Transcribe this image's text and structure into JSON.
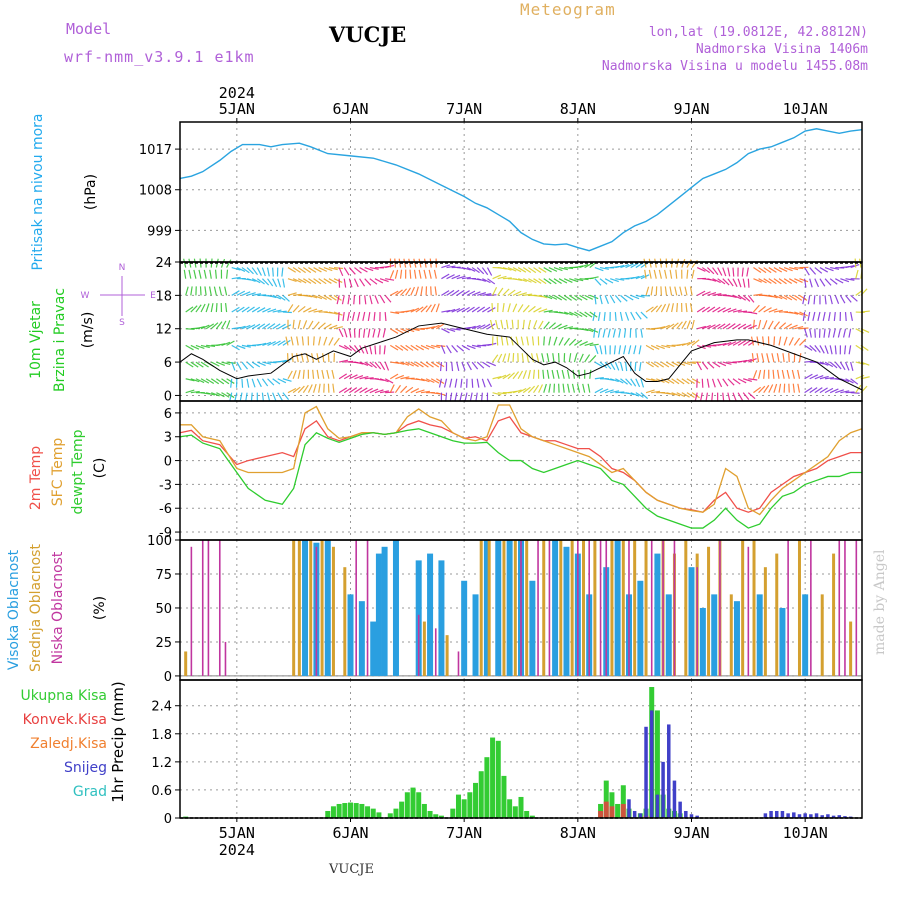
{
  "header": {
    "model_label": "Model",
    "model_name": "wrf-nmm_v3.9.1  e1km",
    "station": "VUCJE",
    "product": "Meteogram",
    "coords": "lon,lat (19.0812E, 42.8812N)",
    "elevation": "Nadmorska Visina 1406m",
    "model_elevation": "Nadmorska Visina u modelu 1455.08m",
    "footer_station": "VUCJE",
    "credit": "made by Angel"
  },
  "colors": {
    "pressure": "#2aa4e0",
    "temp2m": "#f0504a",
    "sfc": "#e0a030",
    "dewpt": "#2ecc2e",
    "high": "#2a9fe0",
    "mid": "#d4a030",
    "low": "#c0369f",
    "rain": "#33cc33",
    "conv": "#e84040",
    "frozen": "#f08030",
    "snow": "#4040c8",
    "graupel": "#30c0c0",
    "label_cyan": "#22aaee",
    "label_green": "#22cc22",
    "label_violet": "#b060d8"
  },
  "chart_data": [
    {
      "type": "line",
      "name": "pressure",
      "ylabel": [
        "Pritisak na nivou mora",
        "(hPa)"
      ],
      "yticks": [
        999,
        1008,
        1017
      ],
      "ylim": [
        992,
        1023
      ],
      "x": [
        0,
        0.1,
        0.2,
        0.35,
        0.45,
        0.55,
        0.7,
        0.8,
        0.9,
        1.05,
        1.15,
        1.3,
        1.5,
        1.7,
        1.9,
        2.1,
        2.3,
        2.5,
        2.6,
        2.7,
        2.8,
        2.9,
        3.0,
        3.1,
        3.2,
        3.3,
        3.4,
        3.5,
        3.6,
        3.7,
        3.8,
        3.9,
        4.0,
        4.1,
        4.2,
        4.3,
        4.4,
        4.5,
        4.6,
        4.7,
        4.8,
        4.9,
        5.0,
        5.1,
        5.2,
        5.3,
        5.4,
        5.5,
        5.6,
        5.7,
        5.8,
        5.9,
        6.0
      ],
      "series": [
        {
          "values": [
            1010.5,
            1011,
            1012,
            1014.5,
            1016.5,
            1018,
            1018,
            1017.5,
            1018,
            1018.3,
            1017.5,
            1016,
            1015.5,
            1015,
            1013.5,
            1011.5,
            1009,
            1006.5,
            1005,
            1004,
            1002.5,
            1001,
            998.5,
            997,
            996,
            995.8,
            996,
            995.2,
            994.5,
            995.5,
            996.5,
            998.5,
            1000,
            1001,
            1002.5,
            1004.5,
            1006.5,
            1008.5,
            1010.5,
            1011.5,
            1012.5,
            1014,
            1016,
            1017,
            1017.5,
            1018.5,
            1019.5,
            1021,
            1021.5,
            1021,
            1020.5,
            1021,
            1021.3
          ]
        }
      ]
    },
    {
      "type": "line",
      "name": "wind",
      "ylabel": [
        "10m Vjetar",
        "Brzina i Pravac",
        "(m/s)"
      ],
      "yticks": [
        0,
        6,
        12,
        18,
        24
      ],
      "ylim": [
        -1,
        24
      ],
      "legend": {
        "top": "N",
        "left": "W",
        "right": "E",
        "bottom": "S"
      },
      "x": [
        0,
        0.1,
        0.2,
        0.35,
        0.5,
        0.6,
        0.8,
        1.0,
        1.1,
        1.2,
        1.35,
        1.5,
        1.6,
        1.75,
        1.9,
        2.1,
        2.3,
        2.5,
        2.7,
        2.9,
        3.0,
        3.1,
        3.2,
        3.3,
        3.4,
        3.5,
        3.6,
        3.7,
        3.8,
        3.9,
        4.0,
        4.1,
        4.2,
        4.3,
        4.4,
        4.5,
        4.7,
        4.9,
        5.0,
        5.2,
        5.4,
        5.6,
        5.8,
        6.0
      ],
      "series": [
        {
          "values": [
            6,
            7.5,
            6.5,
            4.5,
            3,
            3.5,
            4,
            7,
            7.5,
            6.5,
            8,
            7,
            8.5,
            9.5,
            10.5,
            12.5,
            13,
            12,
            11,
            10.5,
            8.5,
            6.5,
            5.5,
            6,
            5,
            3.5,
            4,
            5,
            6,
            7,
            4,
            2.5,
            2.5,
            3,
            5.5,
            8,
            9.5,
            10,
            10,
            9,
            7.5,
            6,
            3,
            1
          ]
        }
      ]
    },
    {
      "type": "line",
      "name": "temperature",
      "ylabel": [
        "2m Temp",
        "SFC Temp",
        "dewpt Temp",
        "(C)"
      ],
      "yticks": [
        -9,
        -6,
        -3,
        0,
        3,
        6
      ],
      "ylim": [
        -10,
        7.5
      ],
      "x": [
        0,
        0.1,
        0.2,
        0.35,
        0.5,
        0.6,
        0.75,
        0.9,
        1.0,
        1.1,
        1.2,
        1.3,
        1.4,
        1.5,
        1.6,
        1.7,
        1.8,
        1.9,
        2.0,
        2.1,
        2.2,
        2.3,
        2.4,
        2.5,
        2.6,
        2.7,
        2.8,
        2.9,
        3.0,
        3.1,
        3.2,
        3.3,
        3.4,
        3.5,
        3.6,
        3.7,
        3.8,
        3.9,
        4.0,
        4.1,
        4.2,
        4.3,
        4.4,
        4.5,
        4.6,
        4.7,
        4.8,
        4.9,
        5.0,
        5.1,
        5.2,
        5.3,
        5.4,
        5.5,
        5.6,
        5.7,
        5.8,
        5.9,
        6.0
      ],
      "series": [
        {
          "name": "2m Temp",
          "values": [
            3.5,
            3.8,
            2.5,
            2,
            -0.5,
            0,
            0.5,
            1,
            0.5,
            4,
            5,
            3,
            2.5,
            3,
            3.5,
            3.5,
            3.3,
            3.5,
            4.5,
            5,
            4.5,
            4.2,
            3.5,
            2.8,
            3,
            2.5,
            5,
            5.5,
            3.5,
            3,
            2.5,
            2.5,
            2,
            1.5,
            1.5,
            0.5,
            -1,
            -1.5,
            -2.5,
            -4,
            -5,
            -5.5,
            -6,
            -6.2,
            -6.5,
            -5,
            -4,
            -6,
            -6.5,
            -6,
            -4,
            -3,
            -2,
            -1.5,
            -1,
            0,
            0.5,
            1,
            1
          ]
        },
        {
          "name": "SFC Temp",
          "values": [
            4.5,
            4.5,
            3,
            2.5,
            -1,
            -1.5,
            -1.5,
            -1.5,
            -1,
            6,
            6.8,
            4,
            2.8,
            3,
            3.5,
            3.5,
            3.3,
            3.5,
            5.5,
            6.5,
            5.5,
            5,
            3.5,
            2.8,
            2.5,
            3,
            7,
            7,
            4,
            3,
            2.5,
            2,
            1.5,
            1,
            0.5,
            -0.5,
            -1.5,
            -1,
            -2.5,
            -4,
            -5,
            -5.5,
            -6,
            -6.3,
            -6.5,
            -5.5,
            -1,
            -2,
            -6,
            -6.8,
            -5,
            -3.5,
            -2.5,
            -1.5,
            -0.5,
            0.5,
            2.5,
            3.5,
            4
          ]
        },
        {
          "name": "dewpt Temp",
          "values": [
            3,
            3.2,
            2.2,
            1.5,
            -1.5,
            -3.5,
            -5,
            -5.5,
            -3.5,
            2,
            3.5,
            2.8,
            2.3,
            2.8,
            3.3,
            3.5,
            3.3,
            3.5,
            3.8,
            4,
            3.5,
            3,
            2.5,
            2.2,
            2.2,
            2.3,
            1,
            0,
            0,
            -1,
            -1.5,
            -1,
            -0.5,
            0,
            -0.5,
            -1,
            -2.5,
            -3,
            -4.5,
            -6,
            -7,
            -7.5,
            -8,
            -8.5,
            -8.5,
            -7.5,
            -6,
            -7.5,
            -8.5,
            -8,
            -6,
            -4.5,
            -4,
            -3,
            -2.5,
            -2,
            -2,
            -1.5,
            -1.5
          ]
        }
      ]
    },
    {
      "type": "bar",
      "name": "clouds",
      "ylabel": [
        "Visoka Oblacnost",
        "Srednja Oblacnost",
        "Niska Oblacnost",
        "(%)"
      ],
      "yticks": [
        0,
        25,
        50,
        75,
        100
      ],
      "ylim": [
        -3,
        100
      ],
      "series": [
        {
          "name": "Visoka Oblacnost",
          "x": [
            1.1,
            1.2,
            1.3,
            1.5,
            1.6,
            1.7,
            1.75,
            1.8,
            1.9,
            2.1,
            2.2,
            2.3,
            2.5,
            2.6,
            2.7,
            2.8,
            2.9,
            3.0,
            3.1,
            3.3,
            3.4,
            3.5,
            3.6,
            3.75,
            3.85,
            3.95,
            4.05,
            4.2,
            4.3,
            4.5,
            4.6,
            4.7,
            4.9,
            5.1,
            5.3,
            5.5
          ],
          "values": [
            100,
            98,
            100,
            60,
            55,
            40,
            90,
            95,
            100,
            85,
            90,
            85,
            70,
            60,
            100,
            100,
            100,
            100,
            70,
            100,
            95,
            90,
            60,
            80,
            100,
            60,
            70,
            90,
            60,
            80,
            50,
            60,
            55,
            60,
            50,
            60
          ]
        },
        {
          "name": "Srednja Oblacnost",
          "x": [
            0.05,
            1.0,
            1.05,
            1.15,
            1.25,
            1.35,
            1.45,
            2.15,
            2.35,
            2.65,
            2.72,
            2.85,
            2.95,
            3.05,
            3.2,
            3.35,
            3.45,
            3.55,
            3.65,
            3.8,
            3.9,
            4.0,
            4.1,
            4.25,
            4.35,
            4.45,
            4.55,
            4.65,
            4.75,
            4.85,
            4.95,
            5.05,
            5.15,
            5.25,
            5.45,
            5.65,
            5.75,
            5.9
          ],
          "values": [
            18,
            100,
            100,
            100,
            100,
            95,
            80,
            40,
            30,
            100,
            100,
            100,
            100,
            100,
            100,
            100,
            100,
            100,
            100,
            100,
            100,
            100,
            100,
            100,
            90,
            100,
            90,
            95,
            100,
            60,
            100,
            100,
            80,
            90,
            100,
            60,
            90,
            40
          ]
        },
        {
          "name": "Niska Oblacnost",
          "x": [
            0.1,
            0.2,
            0.25,
            0.35,
            0.4,
            1.2,
            1.55,
            1.65,
            2.1,
            2.25,
            2.45,
            3.0,
            3.15,
            3.25,
            3.5,
            3.6,
            3.7,
            3.75,
            3.95,
            4.15,
            4.25,
            4.35,
            4.55,
            4.75,
            5.0,
            5.35,
            5.55,
            5.8,
            5.85,
            5.95
          ],
          "values": [
            95,
            100,
            100,
            100,
            25,
            95,
            100,
            100,
            45,
            35,
            18,
            100,
            100,
            100,
            100,
            100,
            100,
            100,
            100,
            100,
            100,
            100,
            80,
            100,
            95,
            100,
            100,
            100,
            100,
            100
          ]
        }
      ]
    },
    {
      "type": "bar",
      "name": "precipitation",
      "ylabel": [
        "1hr Precip (mm)"
      ],
      "yticks": [
        0,
        0.6,
        1.2,
        1.8,
        2.4
      ],
      "ylim": [
        0,
        2.95
      ],
      "legend": [
        "Ukupna Kisa",
        "Konvek.Kisa",
        "Zaledj.Kisa",
        "Snijeg",
        "Grad"
      ],
      "series": [
        {
          "name": "Ukupna Kisa",
          "x": [
            0.05,
            1.3,
            1.35,
            1.4,
            1.45,
            1.5,
            1.55,
            1.6,
            1.65,
            1.7,
            1.75,
            1.85,
            1.9,
            1.95,
            2.0,
            2.05,
            2.1,
            2.15,
            2.2,
            2.25,
            2.3,
            2.4,
            2.45,
            2.5,
            2.55,
            2.6,
            2.65,
            2.7,
            2.75,
            2.8,
            2.85,
            2.9,
            2.95,
            3.0,
            3.05,
            3.1,
            3.7,
            3.75,
            3.8,
            3.85,
            3.9,
            3.95,
            4.05,
            4.1,
            4.15,
            4.2,
            4.25,
            4.3,
            4.35,
            4.4
          ],
          "values": [
            0.03,
            0.15,
            0.25,
            0.3,
            0.32,
            0.33,
            0.32,
            0.3,
            0.25,
            0.2,
            0.12,
            0.1,
            0.2,
            0.35,
            0.55,
            0.65,
            0.55,
            0.3,
            0.15,
            0.08,
            0.05,
            0.2,
            0.5,
            0.4,
            0.55,
            0.75,
            1.0,
            1.3,
            1.72,
            1.65,
            0.9,
            0.4,
            0.25,
            0.45,
            0.15,
            0.05,
            0.3,
            0.8,
            0.55,
            0.3,
            0.7,
            0.2,
            0.1,
            0.2,
            2.8,
            2.3,
            0.5,
            0.2,
            0.15,
            0.1
          ]
        },
        {
          "name": "Konvek.Kisa",
          "x": [
            3.7,
            3.75,
            3.8,
            3.9,
            4.1
          ],
          "values": [
            0.15,
            0.35,
            0.25,
            0.3,
            0.05
          ]
        },
        {
          "name": "Snijeg",
          "x": [
            3.95,
            4.0,
            4.05,
            4.1,
            4.15,
            4.2,
            4.25,
            4.3,
            4.35,
            4.4,
            4.45,
            4.5,
            4.55,
            5.15,
            5.2,
            5.25,
            5.3,
            5.35,
            5.4,
            5.45,
            5.5,
            5.55,
            5.6,
            5.65,
            5.7,
            5.75,
            5.8,
            5.85,
            5.9
          ],
          "values": [
            0.4,
            0.15,
            0.1,
            1.95,
            2.3,
            0.5,
            1.2,
            2.0,
            0.8,
            0.35,
            0.15,
            0.08,
            0.05,
            0.1,
            0.15,
            0.15,
            0.15,
            0.1,
            0.12,
            0.08,
            0.1,
            0.08,
            0.1,
            0.06,
            0.08,
            0.05,
            0.06,
            0.04,
            0.03
          ]
        }
      ]
    }
  ],
  "xaxis": {
    "year": "2024",
    "labels": [
      "5JAN",
      "6JAN",
      "7JAN",
      "8JAN",
      "9JAN",
      "10JAN"
    ],
    "label_positions": [
      0.5,
      1.5,
      2.5,
      3.5,
      4.5,
      5.5
    ],
    "xlim": [
      0,
      6
    ]
  }
}
